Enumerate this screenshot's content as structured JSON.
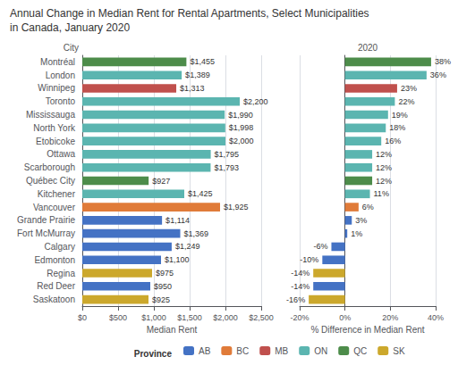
{
  "chart_data": [
    {
      "type": "bar",
      "orientation": "horizontal",
      "title": "Annual Change in Median Rent for Rental Apartments, Select Municipalities",
      "subtitle": "in Canada, January 2020",
      "categories": [
        "Montréal",
        "London",
        "Winnipeg",
        "Toronto",
        "Mississauga",
        "North York",
        "Etobicoke",
        "Ottawa",
        "Scarborough",
        "Québec City",
        "Kitchener",
        "Vancouver",
        "Grande Prairie",
        "Fort McMurray",
        "Calgary",
        "Edmonton",
        "Regina",
        "Red Deer",
        "Saskatoon"
      ],
      "series": [
        {
          "name": "AB",
          "color": "#4472C4",
          "values": [
            null,
            null,
            null,
            null,
            null,
            null,
            null,
            null,
            null,
            null,
            null,
            null,
            1114,
            1369,
            1249,
            1100,
            null,
            950,
            null
          ],
          "value_labels": [
            null,
            null,
            null,
            null,
            null,
            null,
            null,
            null,
            null,
            null,
            null,
            null,
            "$1,114",
            "$1,369",
            "$1,249",
            "$1,100",
            null,
            "$950",
            null
          ]
        },
        {
          "name": "BC",
          "color": "#E07B39",
          "values": [
            null,
            null,
            null,
            null,
            null,
            null,
            null,
            null,
            null,
            null,
            null,
            1925,
            null,
            null,
            null,
            null,
            null,
            null,
            null
          ],
          "value_labels": [
            null,
            null,
            null,
            null,
            null,
            null,
            null,
            null,
            null,
            null,
            null,
            "$1,925",
            null,
            null,
            null,
            null,
            null,
            null,
            null
          ]
        },
        {
          "name": "MB",
          "color": "#C0504D",
          "values": [
            null,
            null,
            1313,
            null,
            null,
            null,
            null,
            null,
            null,
            null,
            null,
            null,
            null,
            null,
            null,
            null,
            null,
            null,
            null
          ],
          "value_labels": [
            null,
            null,
            "$1,313",
            null,
            null,
            null,
            null,
            null,
            null,
            null,
            null,
            null,
            null,
            null,
            null,
            null,
            null,
            null,
            null
          ]
        },
        {
          "name": "ON",
          "color": "#5BB5B0",
          "values": [
            null,
            1389,
            null,
            2200,
            1990,
            1998,
            2000,
            1795,
            1793,
            null,
            1425,
            null,
            null,
            null,
            null,
            null,
            null,
            null,
            null
          ],
          "value_labels": [
            null,
            "$1,389",
            null,
            "$2,200",
            "$1,990",
            "$1,998",
            "$2,000",
            "$1,795",
            "$1,793",
            null,
            "$1,425",
            null,
            null,
            null,
            null,
            null,
            null,
            null,
            null
          ]
        },
        {
          "name": "QC",
          "color": "#4D8C4A",
          "values": [
            1455,
            null,
            null,
            null,
            null,
            null,
            null,
            null,
            null,
            927,
            null,
            null,
            null,
            null,
            null,
            null,
            null,
            null,
            null
          ],
          "value_labels": [
            "$1,455",
            null,
            null,
            null,
            null,
            null,
            null,
            null,
            null,
            "$927",
            null,
            null,
            null,
            null,
            null,
            null,
            null,
            null,
            null
          ]
        },
        {
          "name": "SK",
          "color": "#CCA82C",
          "values": [
            null,
            null,
            null,
            null,
            null,
            null,
            null,
            null,
            null,
            null,
            null,
            null,
            null,
            null,
            null,
            null,
            975,
            null,
            925
          ],
          "value_labels": [
            null,
            null,
            null,
            null,
            null,
            null,
            null,
            null,
            null,
            null,
            null,
            null,
            null,
            null,
            null,
            null,
            "$975",
            null,
            "$925"
          ]
        }
      ],
      "xlabel": "Median Rent",
      "ylabel": "City",
      "xlim": [
        0,
        2500
      ],
      "xticks": [
        {
          "value": 0,
          "label": "$0"
        },
        {
          "value": 500,
          "label": "$500"
        },
        {
          "value": 1000,
          "label": "$1,000"
        },
        {
          "value": 1500,
          "label": "$1,500"
        },
        {
          "value": 2000,
          "label": "$2,000"
        },
        {
          "value": 2500,
          "label": "$2,500"
        }
      ],
      "grid": true,
      "data_labels": true
    },
    {
      "type": "bar",
      "orientation": "horizontal",
      "title": "2020",
      "categories": [
        "Montréal",
        "London",
        "Winnipeg",
        "Toronto",
        "Mississauga",
        "North York",
        "Etobicoke",
        "Ottawa",
        "Scarborough",
        "Québec City",
        "Kitchener",
        "Vancouver",
        "Grande Prairie",
        "Fort McMurray",
        "Calgary",
        "Edmonton",
        "Regina",
        "Red Deer",
        "Saskatoon"
      ],
      "series": [
        {
          "name": "AB",
          "color": "#4472C4",
          "values": [
            null,
            null,
            null,
            null,
            null,
            null,
            null,
            null,
            null,
            null,
            null,
            null,
            3,
            1,
            -6,
            -10,
            null,
            -14,
            null
          ],
          "value_labels": [
            null,
            null,
            null,
            null,
            null,
            null,
            null,
            null,
            null,
            null,
            null,
            null,
            "3%",
            "1%",
            "-6%",
            "-10%",
            null,
            "-14%",
            null
          ]
        },
        {
          "name": "BC",
          "color": "#E07B39",
          "values": [
            null,
            null,
            null,
            null,
            null,
            null,
            null,
            null,
            null,
            null,
            null,
            6,
            null,
            null,
            null,
            null,
            null,
            null,
            null
          ],
          "value_labels": [
            null,
            null,
            null,
            null,
            null,
            null,
            null,
            null,
            null,
            null,
            null,
            "6%",
            null,
            null,
            null,
            null,
            null,
            null,
            null
          ]
        },
        {
          "name": "MB",
          "color": "#C0504D",
          "values": [
            null,
            null,
            23,
            null,
            null,
            null,
            null,
            null,
            null,
            null,
            null,
            null,
            null,
            null,
            null,
            null,
            null,
            null,
            null
          ],
          "value_labels": [
            null,
            null,
            "23%",
            null,
            null,
            null,
            null,
            null,
            null,
            null,
            null,
            null,
            null,
            null,
            null,
            null,
            null,
            null,
            null
          ]
        },
        {
          "name": "ON",
          "color": "#5BB5B0",
          "values": [
            null,
            36,
            null,
            22,
            19,
            18,
            16,
            12,
            12,
            null,
            11,
            null,
            null,
            null,
            null,
            null,
            null,
            null,
            null
          ],
          "value_labels": [
            null,
            "36%",
            null,
            "22%",
            "19%",
            "18%",
            "16%",
            "12%",
            "12%",
            null,
            "11%",
            null,
            null,
            null,
            null,
            null,
            null,
            null,
            null
          ]
        },
        {
          "name": "QC",
          "color": "#4D8C4A",
          "values": [
            38,
            null,
            null,
            null,
            null,
            null,
            null,
            null,
            null,
            12,
            null,
            null,
            null,
            null,
            null,
            null,
            null,
            null,
            null
          ],
          "value_labels": [
            "38%",
            null,
            null,
            null,
            null,
            null,
            null,
            null,
            null,
            "12%",
            null,
            null,
            null,
            null,
            null,
            null,
            null,
            null,
            null
          ]
        },
        {
          "name": "SK",
          "color": "#CCA82C",
          "values": [
            null,
            null,
            null,
            null,
            null,
            null,
            null,
            null,
            null,
            null,
            null,
            null,
            null,
            null,
            null,
            null,
            -14,
            null,
            -16
          ],
          "value_labels": [
            null,
            null,
            null,
            null,
            null,
            null,
            null,
            null,
            null,
            null,
            null,
            null,
            null,
            null,
            null,
            null,
            "-14%",
            null,
            "-16%"
          ]
        }
      ],
      "xlabel": "% Difference in Median Rent",
      "xlim": [
        -20,
        40
      ],
      "xticks": [
        {
          "value": -20,
          "label": "-20%"
        },
        {
          "value": 0,
          "label": "0%"
        },
        {
          "value": 20,
          "label": "20%"
        },
        {
          "value": 40,
          "label": "40%"
        }
      ],
      "grid": true,
      "data_labels": true,
      "tick_labels": "x",
      "legend": "bottom",
      "legend_title": "Province"
    }
  ]
}
